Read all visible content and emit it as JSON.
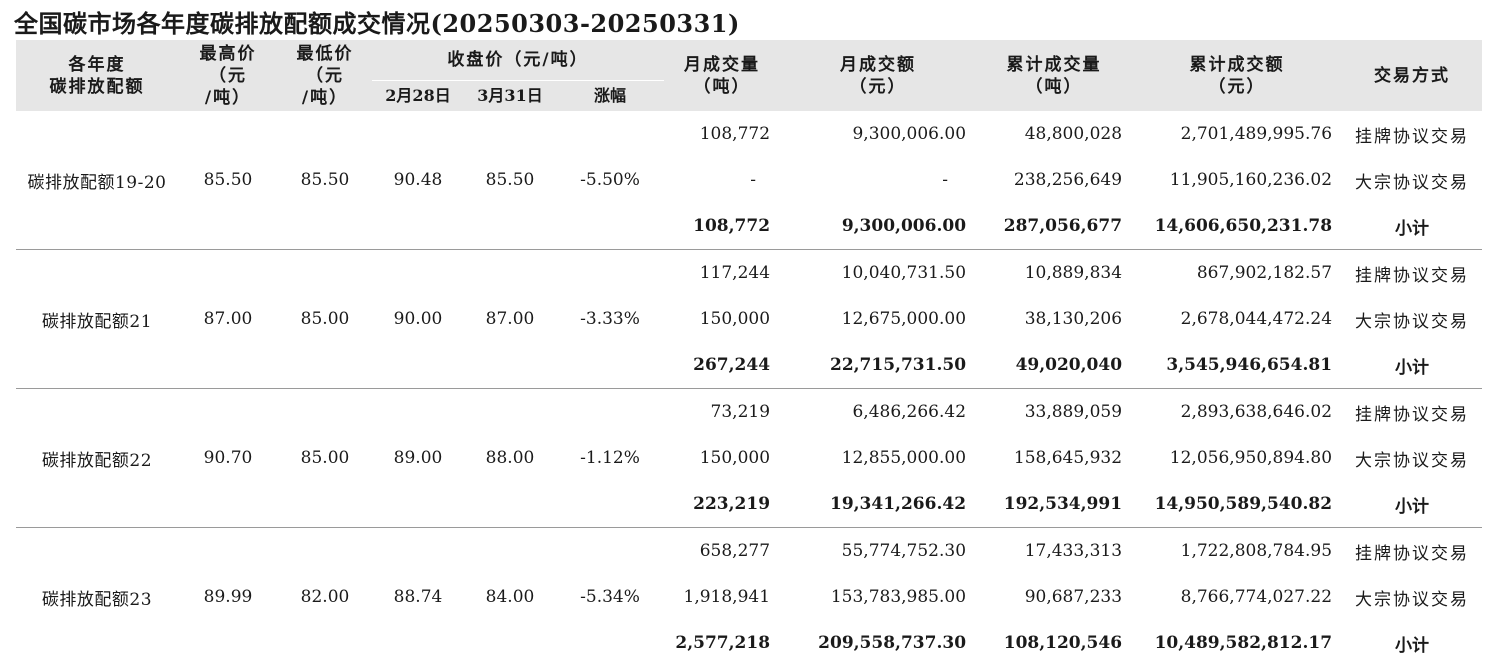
{
  "title": "全国碳市场各年度碳排放配额成交情况(20250303-20250331)",
  "headers": {
    "year_line1": "各年度",
    "year_line2": "碳排放配额",
    "max_line1": "最高价",
    "max_line2": "（元",
    "max_line3": "/吨）",
    "min_line1": "最低价",
    "min_line2": "（元",
    "min_line3": "/吨）",
    "close_group": "收盘价（元/吨）",
    "close_feb": "2月28日",
    "close_mar": "3月31日",
    "change": "涨幅",
    "month_vol_line1": "月成交量",
    "month_vol_line2": "（吨）",
    "month_amt_line1": "月成交额",
    "month_amt_line2": "（元）",
    "cum_vol_line1": "累计成交量",
    "cum_vol_line2": "（吨）",
    "cum_amt_line1": "累计成交额",
    "cum_amt_line2": "（元）",
    "mode": "交易方式"
  },
  "groups": [
    {
      "name": "碳排放配额19-20",
      "max_price": "85.50",
      "min_price": "85.50",
      "close_feb28": "90.48",
      "close_mar31": "85.50",
      "change": "-5.50%",
      "rows": [
        {
          "month_volume": "108,772",
          "month_amount": "9,300,006.00",
          "cum_volume": "48,800,028",
          "cum_amount": "2,701,489,995.76",
          "mode": "挂牌协议交易"
        },
        {
          "month_volume": "-",
          "month_amount": "-",
          "cum_volume": "238,256,649",
          "cum_amount": "11,905,160,236.02",
          "mode": "大宗协议交易"
        },
        {
          "month_volume": "108,772",
          "month_amount": "9,300,006.00",
          "cum_volume": "287,056,677",
          "cum_amount": "14,606,650,231.78",
          "mode": "小计"
        }
      ]
    },
    {
      "name": "碳排放配额21",
      "max_price": "87.00",
      "min_price": "85.00",
      "close_feb28": "90.00",
      "close_mar31": "87.00",
      "change": "-3.33%",
      "rows": [
        {
          "month_volume": "117,244",
          "month_amount": "10,040,731.50",
          "cum_volume": "10,889,834",
          "cum_amount": "867,902,182.57",
          "mode": "挂牌协议交易"
        },
        {
          "month_volume": "150,000",
          "month_amount": "12,675,000.00",
          "cum_volume": "38,130,206",
          "cum_amount": "2,678,044,472.24",
          "mode": "大宗协议交易"
        },
        {
          "month_volume": "267,244",
          "month_amount": "22,715,731.50",
          "cum_volume": "49,020,040",
          "cum_amount": "3,545,946,654.81",
          "mode": "小计"
        }
      ]
    },
    {
      "name": "碳排放配额22",
      "max_price": "90.70",
      "min_price": "85.00",
      "close_feb28": "89.00",
      "close_mar31": "88.00",
      "change": "-1.12%",
      "rows": [
        {
          "month_volume": "73,219",
          "month_amount": "6,486,266.42",
          "cum_volume": "33,889,059",
          "cum_amount": "2,893,638,646.02",
          "mode": "挂牌协议交易"
        },
        {
          "month_volume": "150,000",
          "month_amount": "12,855,000.00",
          "cum_volume": "158,645,932",
          "cum_amount": "12,056,950,894.80",
          "mode": "大宗协议交易"
        },
        {
          "month_volume": "223,219",
          "month_amount": "19,341,266.42",
          "cum_volume": "192,534,991",
          "cum_amount": "14,950,589,540.82",
          "mode": "小计"
        }
      ]
    },
    {
      "name": "碳排放配额23",
      "max_price": "89.99",
      "min_price": "82.00",
      "close_feb28": "88.74",
      "close_mar31": "84.00",
      "change": "-5.34%",
      "rows": [
        {
          "month_volume": "658,277",
          "month_amount": "55,774,752.30",
          "cum_volume": "17,433,313",
          "cum_amount": "1,722,808,784.95",
          "mode": "挂牌协议交易"
        },
        {
          "month_volume": "1,918,941",
          "month_amount": "153,783,985.00",
          "cum_volume": "90,687,233",
          "cum_amount": "8,766,774,027.22",
          "mode": "大宗协议交易"
        },
        {
          "month_volume": "2,577,218",
          "month_amount": "209,558,737.30",
          "cum_volume": "108,120,546",
          "cum_amount": "10,489,582,812.17",
          "mode": "小计"
        }
      ]
    }
  ]
}
